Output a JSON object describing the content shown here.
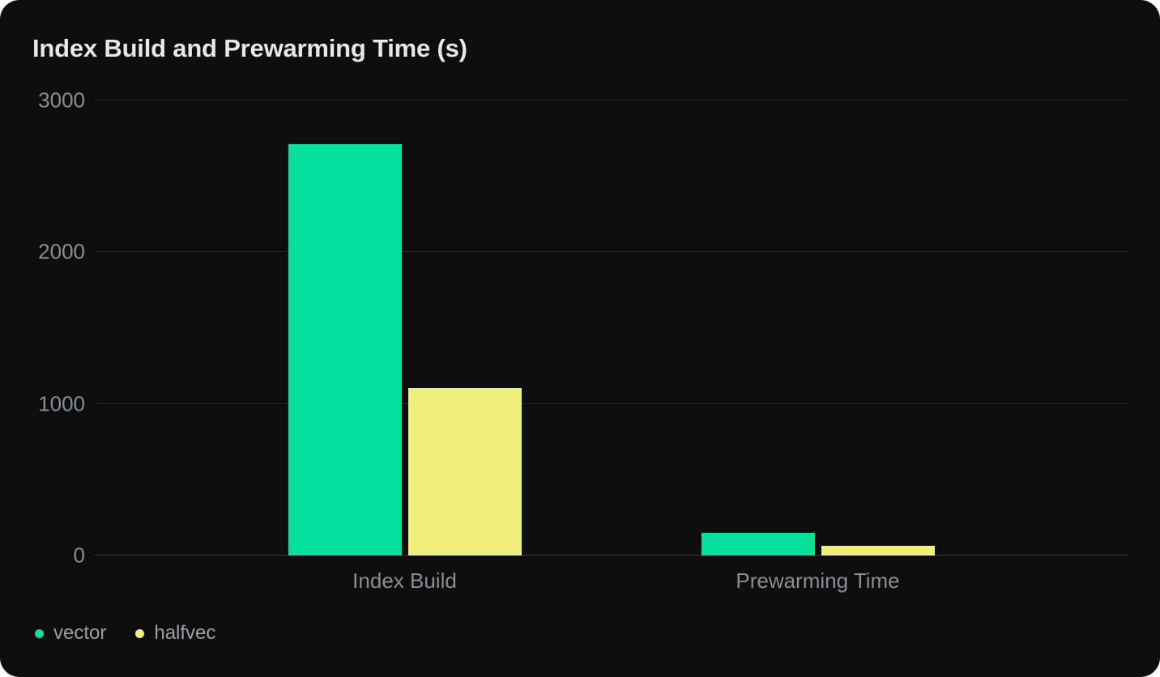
{
  "colors": {
    "page_bg": "#ffffff",
    "card_bg": "#0d0d0e",
    "grid": "#282828",
    "baseline": "#3b3b3b",
    "title_text": "#e7e7e7",
    "tick_text": "#8b8e92",
    "category_text": "#8b8e92",
    "legend_text": "#9ca0a3"
  },
  "chart_data": {
    "type": "bar",
    "title": "Index Build and Prewarming Time (s)",
    "categories": [
      "Index Build",
      "Prewarming Time"
    ],
    "series": [
      {
        "name": "vector",
        "color": "#05e19c",
        "values": [
          2710,
          150
        ]
      },
      {
        "name": "halfvec",
        "color": "#eef07b",
        "values": [
          1105,
          65
        ]
      }
    ],
    "ylim": [
      0,
      3000
    ],
    "yticks": [
      0,
      1000,
      2000,
      3000
    ],
    "grid": true,
    "legend_position": "bottom-left",
    "xlabel": "",
    "ylabel": ""
  }
}
